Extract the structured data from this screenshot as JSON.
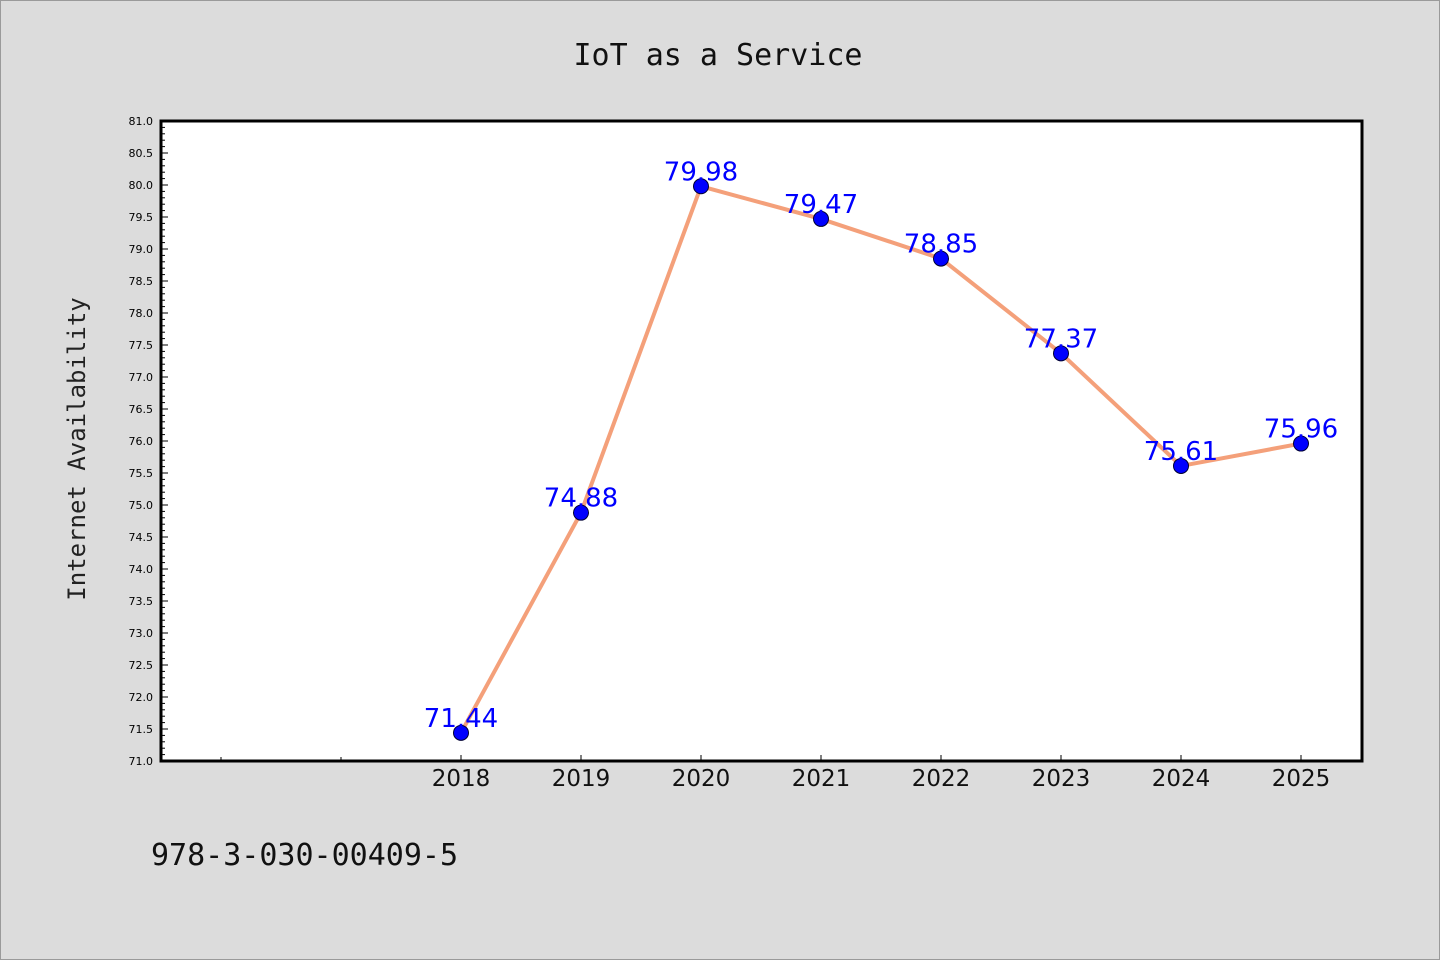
{
  "chart_data": {
    "type": "line",
    "title": "IoT as a Service",
    "xlabel": "",
    "ylabel": "Internet Availability",
    "categories": [
      "2018",
      "2019",
      "2020",
      "2021",
      "2022",
      "2023",
      "2024",
      "2025"
    ],
    "series": [
      {
        "values": [
          71.44,
          74.88,
          79.98,
          79.47,
          78.85,
          77.37,
          75.61,
          75.96
        ],
        "data_labels": [
          "71.44",
          "74.88",
          "79.98",
          "79.47",
          "78.85",
          "77.37",
          "75.61",
          "75.96"
        ],
        "line_color": "#f4a07a",
        "marker_color": "#0000ff"
      }
    ],
    "ylim": [
      71.0,
      81.0
    ],
    "y_ticks": [
      "71.0",
      "71.5",
      "72.0",
      "72.5",
      "73.0",
      "73.5",
      "74.0",
      "74.5",
      "75.0",
      "75.5",
      "76.0",
      "76.5",
      "77.0",
      "77.5",
      "78.0",
      "78.5",
      "79.0",
      "79.5",
      "80.0",
      "80.5",
      "81.0"
    ],
    "grid": false,
    "legend": "none"
  },
  "footer": {
    "code": "978-3-030-00409-5"
  }
}
